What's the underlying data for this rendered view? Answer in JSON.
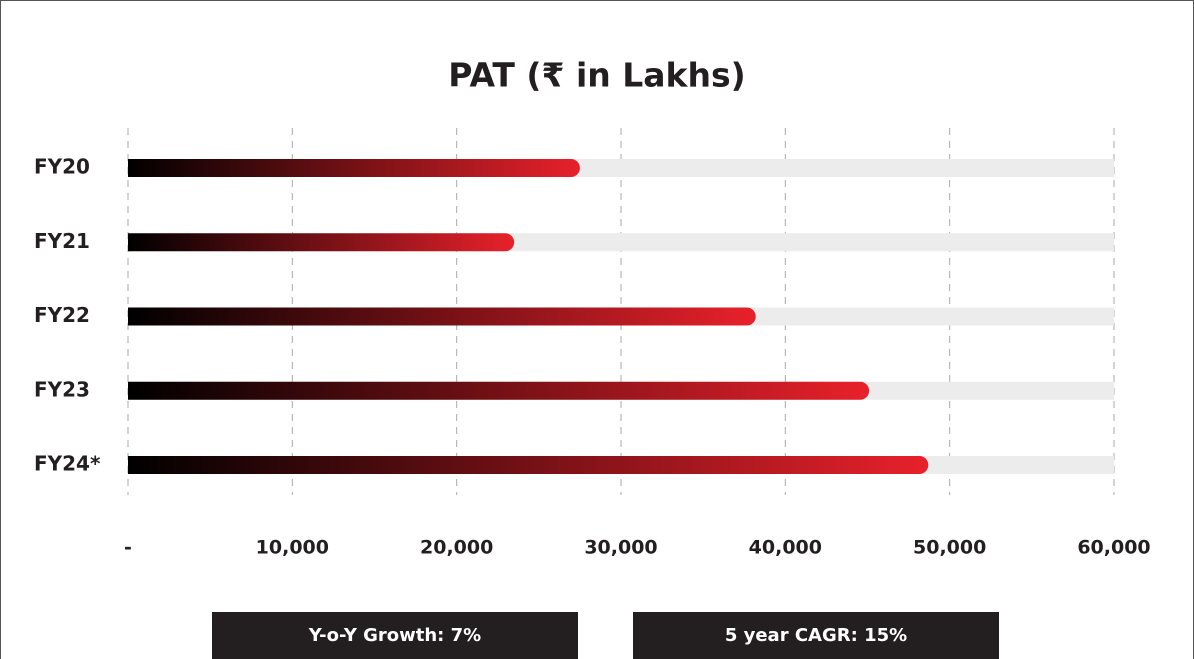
{
  "chart_data": {
    "type": "hbar",
    "title": "PAT (₹ in Lakhs)",
    "categories": [
      "FY20",
      "FY21",
      "FY22",
      "FY23",
      "FY24*"
    ],
    "values": [
      27500,
      23500,
      38200,
      45100,
      48700
    ],
    "gradient": [
      "#000000",
      "#e8212b"
    ],
    "track_color": "#ececec",
    "xlim": [
      0,
      60000
    ],
    "xticks": [
      {
        "value": 0,
        "label": "-"
      },
      {
        "value": 10000,
        "label": "10,000"
      },
      {
        "value": 20000,
        "label": "20,000"
      },
      {
        "value": 30000,
        "label": "30,000"
      },
      {
        "value": 40000,
        "label": "40,000"
      },
      {
        "value": 50000,
        "label": "50,000"
      },
      {
        "value": 60000,
        "label": "60,000"
      }
    ],
    "grid": true,
    "annotations": [
      "Y-o-Y Growth: 7%",
      "5 year CAGR: 15%"
    ]
  }
}
